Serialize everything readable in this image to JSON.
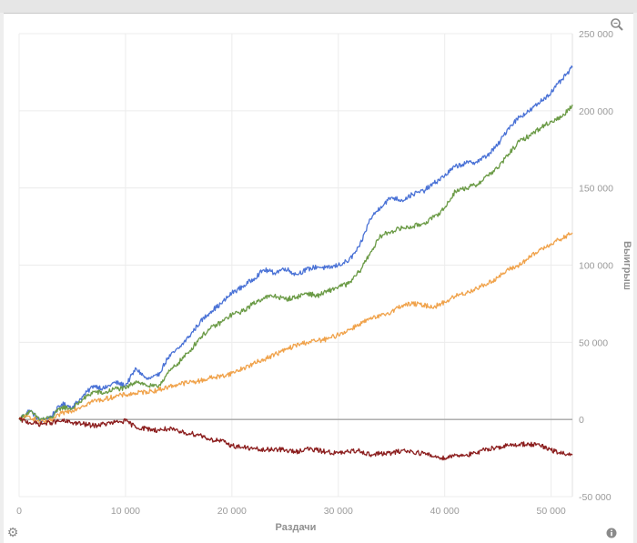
{
  "icons": {
    "zoom": "magnifier-zoom-icon",
    "settings": "gear-icon",
    "info": "info-icon"
  },
  "chart_data": {
    "type": "line",
    "xlabel": "Раздачи",
    "ylabel": "Выигрыш",
    "xlim": [
      0,
      52000
    ],
    "ylim": [
      -50000,
      250000
    ],
    "x_ticks": [
      0,
      10000,
      20000,
      30000,
      40000,
      50000
    ],
    "x_tick_labels": [
      "0",
      "10 000",
      "20 000",
      "30 000",
      "40 000",
      "50 000"
    ],
    "y_ticks": [
      -50000,
      0,
      50000,
      100000,
      150000,
      200000,
      250000
    ],
    "y_tick_labels": [
      "-50 000",
      "0",
      "50 000",
      "100 000",
      "150 000",
      "200 000",
      "250 000"
    ],
    "grid": true,
    "zero_line": true,
    "series": [
      {
        "color": "#4a72d6",
        "x": [
          0,
          1000,
          2000,
          3000,
          4000,
          5000,
          6000,
          7000,
          8000,
          9000,
          10000,
          11000,
          12000,
          13000,
          14000,
          15000,
          16000,
          17000,
          18000,
          19000,
          20000,
          21000,
          22000,
          23000,
          24000,
          25000,
          26000,
          27000,
          28000,
          29000,
          30000,
          31000,
          32000,
          33000,
          34000,
          35000,
          36000,
          37000,
          38000,
          39000,
          40000,
          41000,
          42000,
          43000,
          44000,
          45000,
          46000,
          47000,
          48000,
          49000,
          50000,
          51000,
          52000
        ],
        "y": [
          0,
          6000,
          -1000,
          2000,
          10000,
          8000,
          15000,
          22000,
          20000,
          24000,
          22000,
          33000,
          26000,
          28000,
          40000,
          46000,
          54000,
          63000,
          70000,
          75000,
          82000,
          86000,
          91000,
          97000,
          95000,
          98000,
          94000,
          97000,
          99000,
          98000,
          100000,
          103000,
          112000,
          130000,
          138000,
          144000,
          142000,
          146000,
          148000,
          153000,
          158000,
          164000,
          166000,
          167000,
          171000,
          178000,
          189000,
          196000,
          200000,
          206000,
          212000,
          220000,
          228000
        ]
      },
      {
        "color": "#6a9a45",
        "x": [
          0,
          1000,
          2000,
          3000,
          4000,
          5000,
          6000,
          7000,
          8000,
          9000,
          10000,
          11000,
          12000,
          13000,
          14000,
          15000,
          16000,
          17000,
          18000,
          19000,
          20000,
          21000,
          22000,
          23000,
          24000,
          25000,
          26000,
          27000,
          28000,
          29000,
          30000,
          31000,
          32000,
          33000,
          34000,
          35000,
          36000,
          37000,
          38000,
          39000,
          40000,
          41000,
          42000,
          43000,
          44000,
          45000,
          46000,
          47000,
          48000,
          49000,
          50000,
          51000,
          52000
        ],
        "y": [
          0,
          5000,
          0,
          1000,
          8000,
          7000,
          13000,
          18000,
          17000,
          20000,
          20000,
          25000,
          22000,
          21000,
          30000,
          37000,
          44000,
          53000,
          59000,
          63000,
          68000,
          70000,
          75000,
          79000,
          80000,
          78000,
          79000,
          82000,
          80000,
          83000,
          86000,
          88000,
          96000,
          108000,
          119000,
          122000,
          124000,
          125000,
          127000,
          131000,
          137000,
          148000,
          150000,
          152000,
          158000,
          163000,
          172000,
          180000,
          184000,
          189000,
          193000,
          196000,
          204000
        ]
      },
      {
        "color": "#f0a24a",
        "x": [
          0,
          1000,
          2000,
          3000,
          4000,
          5000,
          6000,
          7000,
          8000,
          9000,
          10000,
          11000,
          12000,
          13000,
          14000,
          15000,
          16000,
          17000,
          18000,
          19000,
          20000,
          21000,
          22000,
          23000,
          24000,
          25000,
          26000,
          27000,
          28000,
          29000,
          30000,
          31000,
          32000,
          33000,
          34000,
          35000,
          36000,
          37000,
          38000,
          39000,
          40000,
          41000,
          42000,
          43000,
          44000,
          45000,
          46000,
          47000,
          48000,
          49000,
          50000,
          51000,
          52000
        ],
        "y": [
          0,
          2000,
          -2000,
          -1000,
          4000,
          6000,
          9000,
          12000,
          13000,
          15000,
          16000,
          17000,
          18000,
          19000,
          21000,
          23000,
          24000,
          25000,
          27000,
          28000,
          30000,
          33000,
          36000,
          39000,
          42000,
          45000,
          48000,
          50000,
          51000,
          52000,
          55000,
          58000,
          62000,
          65000,
          67000,
          70000,
          74000,
          75000,
          74000,
          73000,
          76000,
          80000,
          82000,
          85000,
          88000,
          92000,
          97000,
          100000,
          105000,
          110000,
          114000,
          117000,
          121000
        ]
      },
      {
        "color": "#8b1d1d",
        "x": [
          0,
          1000,
          2000,
          3000,
          4000,
          5000,
          6000,
          7000,
          8000,
          9000,
          10000,
          11000,
          12000,
          13000,
          14000,
          15000,
          16000,
          17000,
          18000,
          19000,
          20000,
          21000,
          22000,
          23000,
          24000,
          25000,
          26000,
          27000,
          28000,
          29000,
          30000,
          31000,
          32000,
          33000,
          34000,
          35000,
          36000,
          37000,
          38000,
          39000,
          40000,
          41000,
          42000,
          43000,
          44000,
          45000,
          46000,
          47000,
          48000,
          49000,
          50000,
          51000,
          52000
        ],
        "y": [
          0,
          -2000,
          -3000,
          -2000,
          -1000,
          -2000,
          -3000,
          -4000,
          -3000,
          -2000,
          -1000,
          -5000,
          -6000,
          -7000,
          -6000,
          -8000,
          -9000,
          -10000,
          -13000,
          -14000,
          -17000,
          -18000,
          -19000,
          -20000,
          -19000,
          -20000,
          -21000,
          -19000,
          -20000,
          -21000,
          -22000,
          -21000,
          -20000,
          -23000,
          -22000,
          -22000,
          -20000,
          -21000,
          -22000,
          -24000,
          -25000,
          -23000,
          -23000,
          -22000,
          -19000,
          -18000,
          -17000,
          -16000,
          -16000,
          -17000,
          -20000,
          -22000,
          -23000
        ]
      }
    ]
  }
}
